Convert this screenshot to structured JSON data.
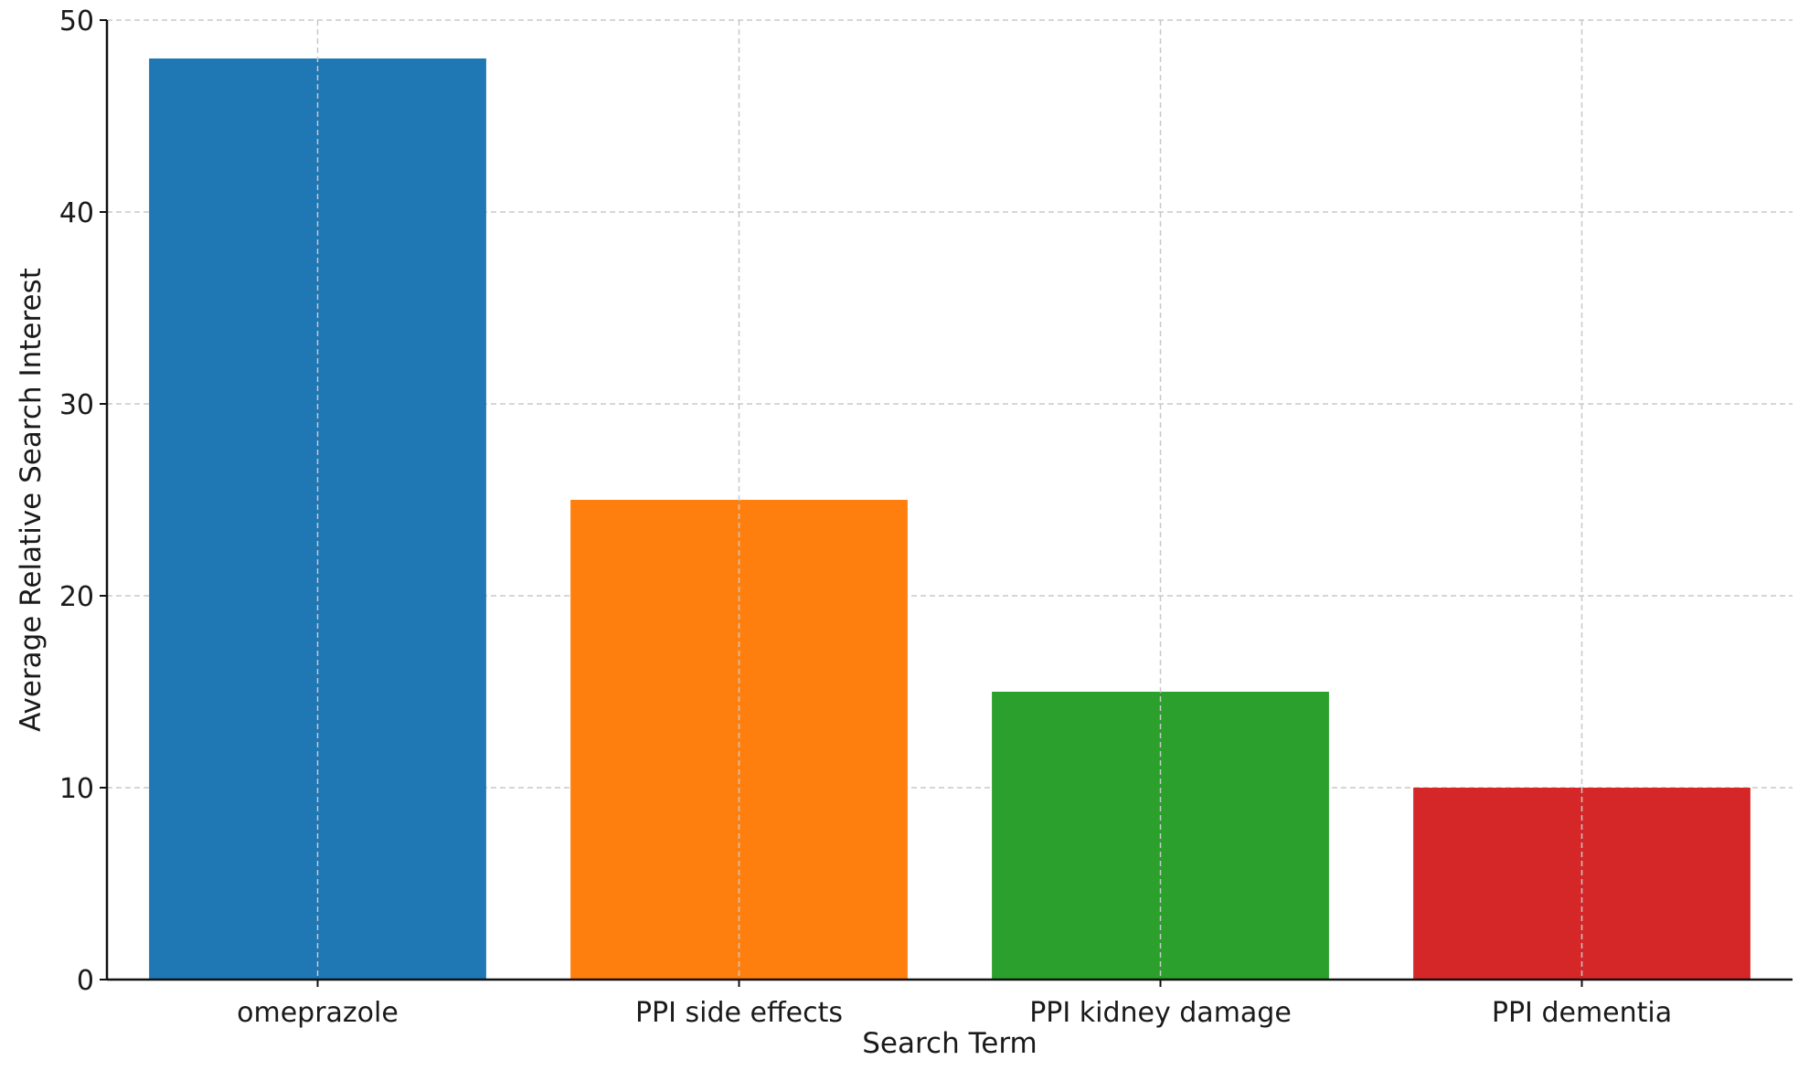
{
  "chart_data": {
    "type": "bar",
    "title": "",
    "xlabel": "Search Term",
    "ylabel": "Average Relative Search Interest",
    "categories": [
      "omeprazole",
      "PPI side effects",
      "PPI kidney damage",
      "PPI dementia"
    ],
    "values": [
      48,
      25,
      15,
      10
    ],
    "colors": [
      "#1f77b4",
      "#ff7f0e",
      "#2ca02c",
      "#d62728"
    ],
    "ylim": [
      0,
      50
    ],
    "yticks": [
      "0",
      "10",
      "20",
      "30",
      "40",
      "50"
    ],
    "grid": true,
    "legend": "none"
  }
}
